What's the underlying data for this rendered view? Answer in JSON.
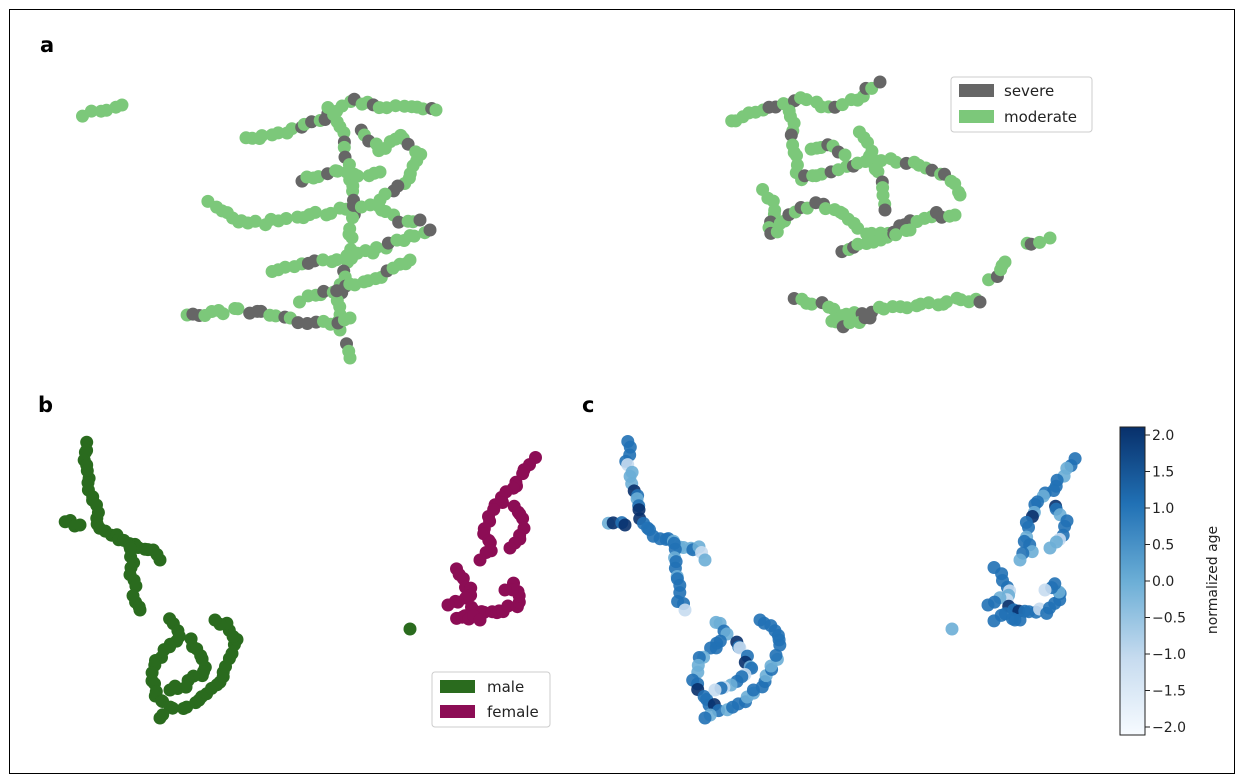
{
  "panels": {
    "a": {
      "letter": "a"
    },
    "b": {
      "letter": "b"
    },
    "c": {
      "letter": "c"
    }
  },
  "colors": {
    "severe": "#666666",
    "moderate": "#7cc87a",
    "male": "#2a6b1e",
    "female": "#8c0d55",
    "colormap": [
      "#f7fbff",
      "#c6dbef",
      "#6baed6",
      "#2171b5",
      "#08306b"
    ]
  },
  "legend_a": [
    {
      "label": "severe",
      "color": "#666666"
    },
    {
      "label": "moderate",
      "color": "#7cc87a"
    }
  ],
  "legend_b": [
    {
      "label": "male",
      "color": "#2a6b1e"
    },
    {
      "label": "female",
      "color": "#8c0d55"
    }
  ],
  "colorbar": {
    "label": "normalized age",
    "ticks": [
      "2.0",
      "1.5",
      "1.0",
      "0.5",
      "0.0",
      "−0.5",
      "−1.0",
      "−1.5",
      "−2.0"
    ],
    "range": [
      -2.0,
      2.0
    ]
  },
  "chart_data": [
    {
      "type": "scatter",
      "panel": "a",
      "series": [
        {
          "name": "severe"
        },
        {
          "name": "moderate"
        }
      ],
      "clusters": 2
    },
    {
      "type": "scatter",
      "panel": "b",
      "series": [
        {
          "name": "male"
        },
        {
          "name": "female"
        }
      ],
      "clusters": 2
    },
    {
      "type": "scatter",
      "panel": "c",
      "color_variable": "normalized age",
      "clim": [
        -2.0,
        2.0
      ]
    }
  ]
}
